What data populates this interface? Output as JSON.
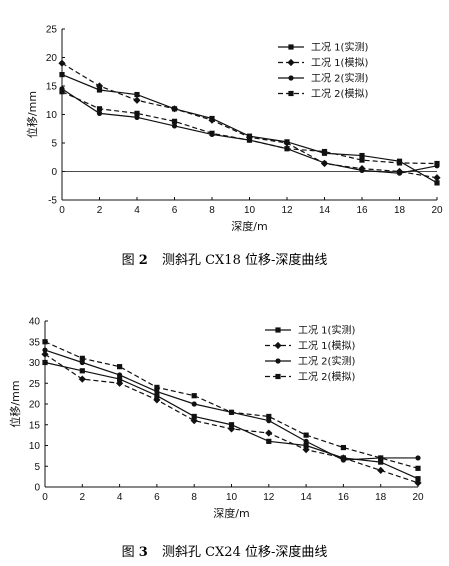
{
  "chart_data": [
    {
      "type": "line",
      "xlabel": "深度/m",
      "ylabel": "位移/mm",
      "xlim": [
        0,
        20
      ],
      "ylim": [
        -5,
        25
      ],
      "xticks": [
        0,
        2,
        4,
        6,
        8,
        10,
        12,
        14,
        16,
        18,
        20
      ],
      "yticks": [
        -5,
        0,
        5,
        10,
        15,
        20,
        25
      ],
      "legend_position": "top-right",
      "x": [
        0,
        2,
        4,
        6,
        8,
        10,
        12,
        14,
        16,
        18,
        20
      ],
      "series": [
        {
          "name": "工况 1(实测)",
          "marker": "square",
          "dash": "solid",
          "values": [
            17,
            14.3,
            13.5,
            11,
            9.3,
            6.2,
            5.2,
            3.2,
            2.8,
            1.8,
            -2
          ]
        },
        {
          "name": "工况 1(模拟)",
          "marker": "diamond",
          "dash": "dashed",
          "values": [
            19,
            15,
            12.5,
            11,
            9,
            6,
            5,
            1.4,
            0.5,
            0,
            -1.1
          ]
        },
        {
          "name": "工况 2(实测)",
          "marker": "circle",
          "dash": "solid",
          "values": [
            14.5,
            10.2,
            9.5,
            8,
            6.5,
            5.5,
            4,
            1.5,
            0.2,
            -0.3,
            1
          ]
        },
        {
          "name": "工况 2(模拟)",
          "marker": "square",
          "dash": "dashed",
          "values": [
            14,
            11,
            10.2,
            8.8,
            6.7,
            5.5,
            4,
            3.5,
            2,
            1.5,
            1.4
          ]
        }
      ]
    },
    {
      "type": "line",
      "xlabel": "深度/m",
      "ylabel": "位移/mm",
      "xlim": [
        0,
        20
      ],
      "ylim": [
        0,
        40
      ],
      "xticks": [
        0,
        2,
        4,
        6,
        8,
        10,
        12,
        14,
        16,
        18,
        20
      ],
      "yticks": [
        0,
        5,
        10,
        15,
        20,
        25,
        30,
        35,
        40
      ],
      "legend_position": "top-right",
      "x": [
        0,
        2,
        4,
        6,
        8,
        10,
        12,
        14,
        16,
        18,
        20
      ],
      "series": [
        {
          "name": "工况 1(实测)",
          "marker": "square",
          "dash": "solid",
          "values": [
            30,
            28,
            26,
            22,
            17,
            15,
            11,
            10,
            7,
            6,
            2
          ]
        },
        {
          "name": "工况 1(模拟)",
          "marker": "diamond",
          "dash": "dashed",
          "values": [
            32,
            26,
            25,
            21,
            16,
            14,
            13,
            9,
            7,
            4,
            1
          ]
        },
        {
          "name": "工况 2(实测)",
          "marker": "circle",
          "dash": "solid",
          "values": [
            33,
            30,
            27,
            23,
            20,
            18,
            16,
            11,
            6.5,
            7,
            7
          ]
        },
        {
          "name": "工况 2(模拟)",
          "marker": "square",
          "dash": "dashed",
          "values": [
            35,
            31,
            29,
            24,
            22,
            18,
            17,
            12.5,
            9.5,
            7,
            4.5
          ]
        }
      ]
    }
  ],
  "captions": [
    {
      "fig": "图",
      "num": "2",
      "text": "测斜孔 CX18 位移-深度曲线"
    },
    {
      "fig": "图",
      "num": "3",
      "text": "测斜孔 CX24 位移-深度曲线"
    }
  ]
}
